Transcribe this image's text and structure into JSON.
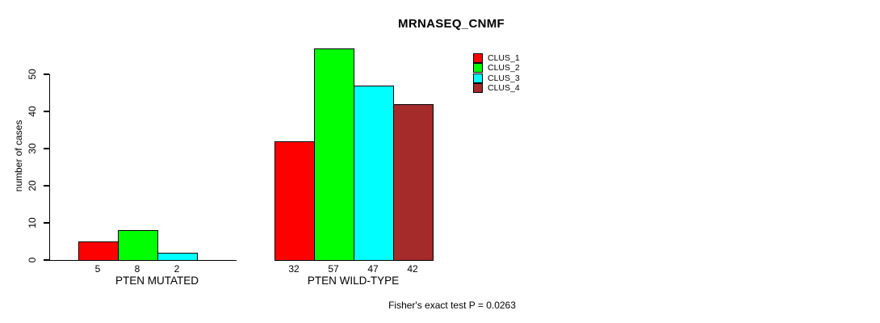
{
  "chart_data": {
    "type": "bar",
    "title": "MRNASEQ_CNMF",
    "ylabel": "number of cases",
    "annotation": "Fisher's exact test P = 0.0263",
    "categories": [
      "PTEN MUTATED",
      "PTEN WILD-TYPE"
    ],
    "series": [
      {
        "name": "CLUS_1",
        "color": "#FF0000",
        "values": [
          5,
          32
        ]
      },
      {
        "name": "CLUS_2",
        "color": "#00FF00",
        "values": [
          8,
          57
        ]
      },
      {
        "name": "CLUS_3",
        "color": "#00FFFF",
        "values": [
          2,
          47
        ]
      },
      {
        "name": "CLUS_4",
        "color": "#A52A2A",
        "values": [
          0,
          42
        ]
      }
    ],
    "yticks": [
      0,
      10,
      20,
      30,
      40,
      50
    ],
    "ylim": [
      0,
      57
    ],
    "grid": false,
    "show_bar_value_labels": true,
    "zero_bars_unlabeled": true,
    "legend_position": "top-right"
  }
}
